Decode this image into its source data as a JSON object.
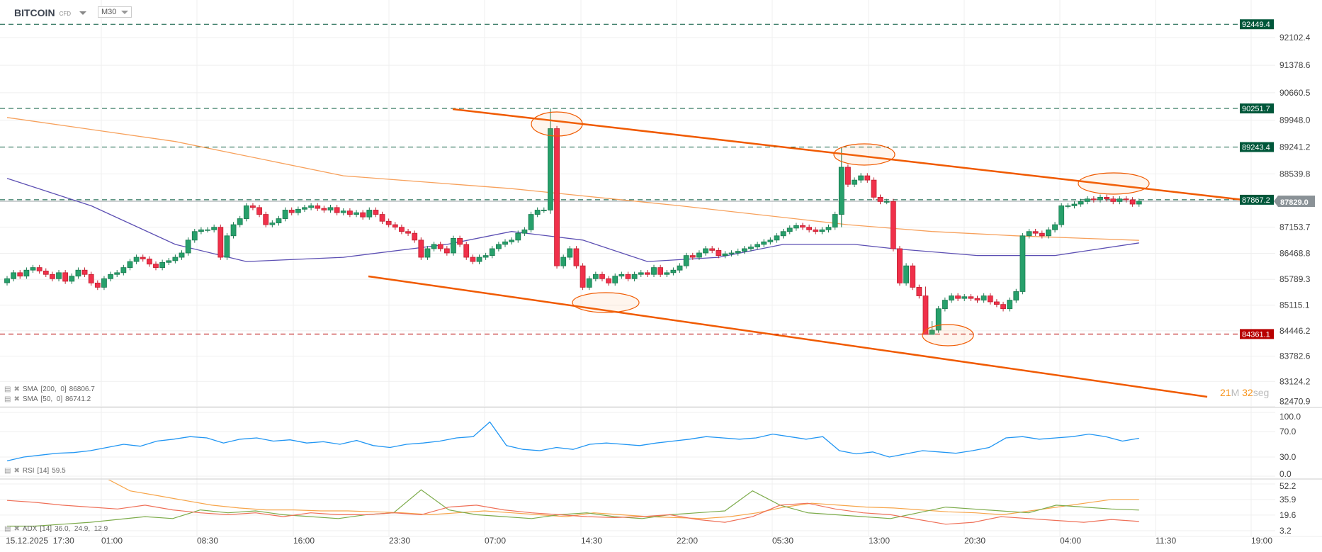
{
  "header": {
    "symbol": "BITCOIN",
    "instrument_type": "CFD",
    "timeframe": "M30"
  },
  "colors": {
    "up": "#27a06b",
    "down": "#f0304a",
    "sma200": "#f7a15c",
    "sma50": "#5c4fb3",
    "rsi": "#2196f3",
    "adx": "#f7a54a",
    "plus_di": "#7cab4a",
    "minus_di": "#ef7058",
    "trendline": "#f05a00",
    "level_green": "#00573a",
    "level_red": "#b80000",
    "current": "#8a9297"
  },
  "legend": {
    "sma200": {
      "label": "SMA",
      "params": "[200,  0]",
      "value": "86806.7"
    },
    "sma50": {
      "label": "SMA",
      "params": "[50,  0]",
      "value": "86741.2"
    },
    "rsi": {
      "label": "RSI",
      "params": "[14]",
      "value": "59.5"
    },
    "adx": {
      "label": "ADX",
      "params": "[14]",
      "value": "36.0,  24.9,  12.9"
    }
  },
  "countdown": {
    "minutes": "21",
    "min_unit": "M",
    "seconds": "32",
    "sec_unit": "seg"
  },
  "chart_data": {
    "type": "candlestick",
    "price_ticks": [
      "92102.4",
      "91378.6",
      "90660.5",
      "89948.0",
      "89241.2",
      "88539.8",
      "87153.7",
      "86468.8",
      "85789.3",
      "85115.1",
      "84446.2",
      "83782.6",
      "83124.2",
      "82470.9"
    ],
    "time_ticks": [
      "15.12.2025  17:30",
      "01:00",
      "08:30",
      "16:00",
      "23:30",
      "07:00",
      "14:30",
      "22:00",
      "05:30",
      "13:00",
      "20:30",
      "04:00",
      "11:30",
      "19:00"
    ],
    "first_open": 85700,
    "closes": [
      85806,
      85963,
      85873,
      86030,
      86097,
      86008,
      85918,
      85806,
      85963,
      85739,
      85873,
      86030,
      85918,
      85694,
      85582,
      85806,
      85918,
      85963,
      86097,
      86254,
      86366,
      86321,
      86187,
      86097,
      86232,
      86277,
      86366,
      86478,
      86814,
      87038,
      87083,
      87083,
      87150,
      86366,
      86926,
      87217,
      87374,
      87710,
      87665,
      87485,
      87217,
      87262,
      87374,
      87598,
      87530,
      87620,
      87665,
      87710,
      87642,
      87598,
      87665,
      87530,
      87575,
      87485,
      87530,
      87418,
      87598,
      87485,
      87306,
      87217,
      87150,
      87038,
      86993,
      86814,
      86366,
      86590,
      86702,
      86590,
      86478,
      86859,
      86702,
      86366,
      86254,
      86366,
      86411,
      86590,
      86702,
      86769,
      86814,
      86993,
      87083,
      87485,
      87598,
      87598,
      89725,
      86142,
      86366,
      86590,
      86142,
      85582,
      85806,
      85918,
      85806,
      85694,
      85873,
      85918,
      85806,
      85918,
      85963,
      85918,
      86097,
      85918,
      85963,
      86030,
      86142,
      86411,
      86366,
      86478,
      86590,
      86545,
      86411,
      86456,
      86478,
      86523,
      86590,
      86635,
      86702,
      86769,
      86814,
      86926,
      87038,
      87127,
      87194,
      87150,
      87083,
      87038,
      87083,
      87150,
      87485,
      88717,
      88269,
      88381,
      88493,
      88381,
      87933,
      87821,
      87821,
      86590,
      85694,
      86142,
      85582,
      85358,
      84351,
      84463,
      85022,
      85246,
      85358,
      85291,
      85336,
      85291,
      85246,
      85358,
      85202,
      85134,
      85022,
      85246,
      85470,
      86926,
      87038,
      86993,
      86926,
      87083,
      87217,
      87710,
      87710,
      87754,
      87821,
      87889,
      87866,
      87933,
      87889,
      87821,
      87889,
      87866,
      87754,
      87829
    ],
    "extremes": {
      "84": [
        90251.7,
        87500
      ],
      "129": [
        89243.4,
        87150
      ],
      "142": [
        85600,
        84361.1
      ],
      "143": [
        84700,
        84361.1
      ]
    },
    "sma200": [
      [
        0,
        90016
      ],
      [
        26,
        89389
      ],
      [
        52,
        88493
      ],
      [
        78,
        88157
      ],
      [
        104,
        87710
      ],
      [
        130,
        87217
      ],
      [
        143,
        87038
      ],
      [
        156,
        86926
      ],
      [
        175,
        86807
      ]
    ],
    "sma50": [
      [
        0,
        88426
      ],
      [
        13,
        87710
      ],
      [
        26,
        86702
      ],
      [
        37,
        86254
      ],
      [
        52,
        86366
      ],
      [
        68,
        86702
      ],
      [
        78,
        87038
      ],
      [
        89,
        86814
      ],
      [
        99,
        86254
      ],
      [
        110,
        86366
      ],
      [
        120,
        86702
      ],
      [
        131,
        86702
      ],
      [
        137,
        86590
      ],
      [
        150,
        86411
      ],
      [
        162,
        86411
      ],
      [
        175,
        86741
      ]
    ],
    "levels": [
      {
        "value": "92449.4",
        "kind": "green"
      },
      {
        "value": "90251.7",
        "kind": "green"
      },
      {
        "value": "89243.4",
        "kind": "green"
      },
      {
        "value": "87867.2",
        "kind": "green"
      },
      {
        "value": "84361.1",
        "kind": "red"
      }
    ],
    "current_price": "87829.0",
    "rsi": {
      "ticks": [
        "100.0",
        "70.0",
        "30.0",
        "0.0"
      ],
      "values": [
        24,
        30,
        33,
        36,
        37,
        40,
        45,
        50,
        47,
        55,
        58,
        62,
        60,
        52,
        58,
        60,
        55,
        57,
        52,
        54,
        50,
        56,
        48,
        45,
        50,
        52,
        55,
        60,
        62,
        85,
        48,
        42,
        40,
        45,
        42,
        50,
        52,
        50,
        48,
        52,
        55,
        58,
        62,
        60,
        58,
        60,
        66,
        62,
        58,
        62,
        40,
        35,
        38,
        30,
        35,
        40,
        38,
        36,
        40,
        45,
        60,
        62,
        58,
        60,
        62,
        66,
        62,
        55,
        59.5
      ]
    },
    "adx": {
      "ticks": [
        "52.2",
        "35.9",
        "19.6",
        "3.2"
      ],
      "adx": [
        60,
        45,
        40,
        35,
        30,
        27,
        25,
        25,
        24,
        24,
        23,
        22,
        20,
        22,
        24,
        22,
        20,
        18,
        22,
        20,
        18,
        17,
        16,
        18,
        22,
        28,
        32,
        30,
        28,
        27,
        25,
        23,
        22,
        20,
        24,
        28,
        32,
        36,
        36
      ],
      "plus_di": [
        8,
        8,
        10,
        12,
        15,
        18,
        16,
        25,
        22,
        24,
        20,
        18,
        16,
        20,
        22,
        46,
        25,
        20,
        18,
        16,
        20,
        22,
        18,
        16,
        20,
        22,
        24,
        45,
        30,
        22,
        20,
        18,
        16,
        22,
        28,
        26,
        24,
        22,
        30,
        28,
        26,
        24.9
      ],
      "minus_di": [
        35,
        33,
        30,
        28,
        26,
        30,
        25,
        22,
        20,
        22,
        18,
        22,
        20,
        20,
        22,
        20,
        28,
        30,
        25,
        22,
        20,
        18,
        17,
        18,
        20,
        15,
        12,
        18,
        30,
        32,
        26,
        22,
        20,
        15,
        10,
        12,
        18,
        16,
        14,
        12,
        15,
        12.9
      ]
    }
  }
}
